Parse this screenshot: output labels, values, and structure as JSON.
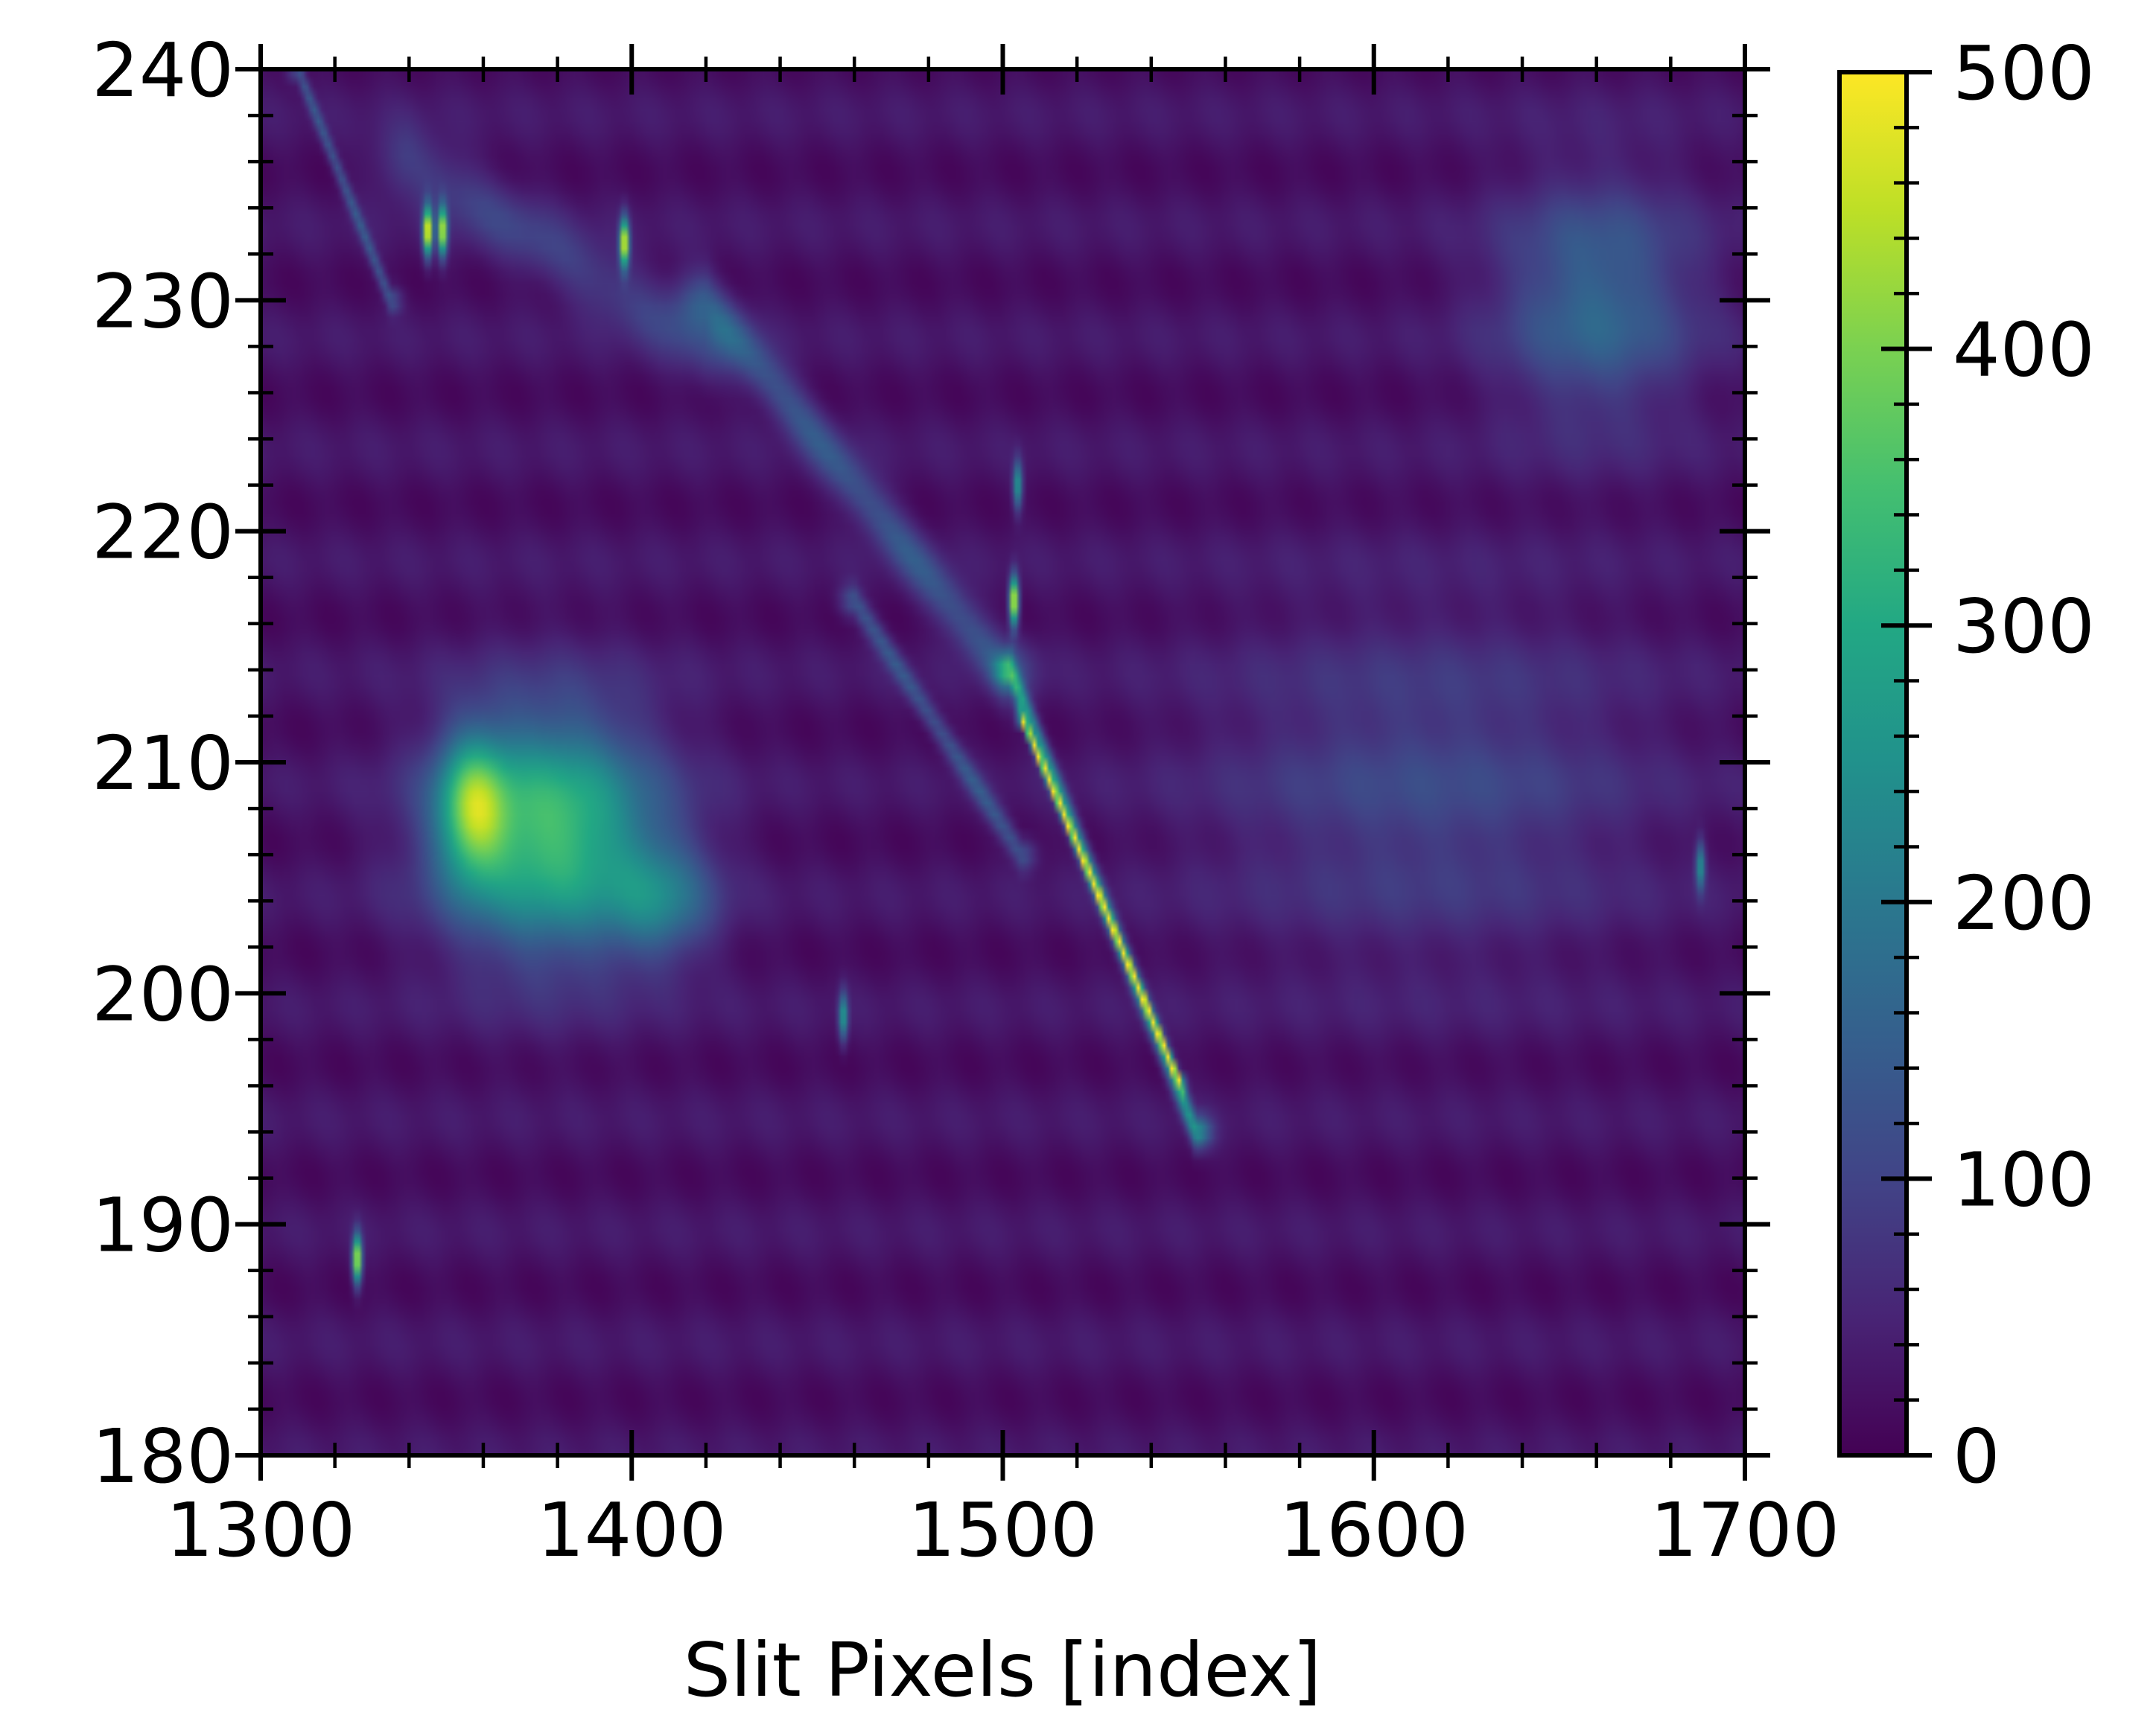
{
  "chart_data": {
    "type": "heatmap",
    "title": "",
    "xlabel": "Slit Pixels [index]",
    "ylabel": "",
    "xlim": [
      1300,
      1700
    ],
    "ylim": [
      180,
      240
    ],
    "x_ticks": [
      "1300",
      "1400",
      "1500",
      "1600",
      "1700"
    ],
    "y_ticks": [
      "180",
      "190",
      "200",
      "210",
      "220",
      "230",
      "240"
    ],
    "colormap": "viridis",
    "colorbar": {
      "range": [
        0,
        500
      ],
      "ticks": [
        "0",
        "100",
        "200",
        "300",
        "400",
        "500"
      ]
    },
    "features": [
      {
        "kind": "bright_region",
        "x": 1378,
        "y": 207,
        "sx": 28,
        "sy": 5,
        "value": 330
      },
      {
        "kind": "bright_region",
        "x": 1357,
        "y": 208,
        "sx": 9,
        "sy": 3,
        "value": 260
      },
      {
        "kind": "bright_region",
        "x": 1408,
        "y": 204,
        "sx": 14,
        "sy": 2.5,
        "value": 140
      },
      {
        "kind": "bright_region",
        "x": 1660,
        "y": 230,
        "sx": 26,
        "sy": 5,
        "value": 140
      },
      {
        "kind": "bright_region",
        "x": 1615,
        "y": 209,
        "sx": 55,
        "sy": 7,
        "value": 80
      },
      {
        "kind": "bright_ridge",
        "from": [
          1502,
          214
        ],
        "to": [
          1552,
          194
        ],
        "width": 4,
        "value": 230
      },
      {
        "kind": "bright_ridge",
        "from": [
          1505,
          212
        ],
        "to": [
          1548,
          196
        ],
        "width": 1.5,
        "value": 420
      },
      {
        "kind": "faint_ridge",
        "from": [
          1420,
          230
        ],
        "to": [
          1500,
          214
        ],
        "width": 8,
        "value": 110
      },
      {
        "kind": "faint_ridge",
        "from": [
          1340,
          236
        ],
        "to": [
          1420,
          228
        ],
        "width": 10,
        "value": 70
      },
      {
        "kind": "faint_ridge",
        "from": [
          1460,
          217
        ],
        "to": [
          1505,
          206
        ],
        "width": 4,
        "value": 110
      },
      {
        "kind": "faint_ridge",
        "from": [
          1310,
          240
        ],
        "to": [
          1335,
          230
        ],
        "width": 3,
        "value": 110
      },
      {
        "kind": "spot",
        "x": 1345,
        "y": 233,
        "value": 500
      },
      {
        "kind": "spot",
        "x": 1349,
        "y": 233,
        "value": 450
      },
      {
        "kind": "spot",
        "x": 1398,
        "y": 232.5,
        "value": 480
      },
      {
        "kind": "spot",
        "x": 1503,
        "y": 217,
        "value": 500
      },
      {
        "kind": "spot",
        "x": 1326,
        "y": 188.5,
        "value": 460
      },
      {
        "kind": "spot",
        "x": 1504,
        "y": 222,
        "value": 250
      },
      {
        "kind": "spot",
        "x": 1457,
        "y": 199,
        "value": 250
      },
      {
        "kind": "spot",
        "x": 1688,
        "y": 205.5,
        "value": 220
      }
    ]
  }
}
